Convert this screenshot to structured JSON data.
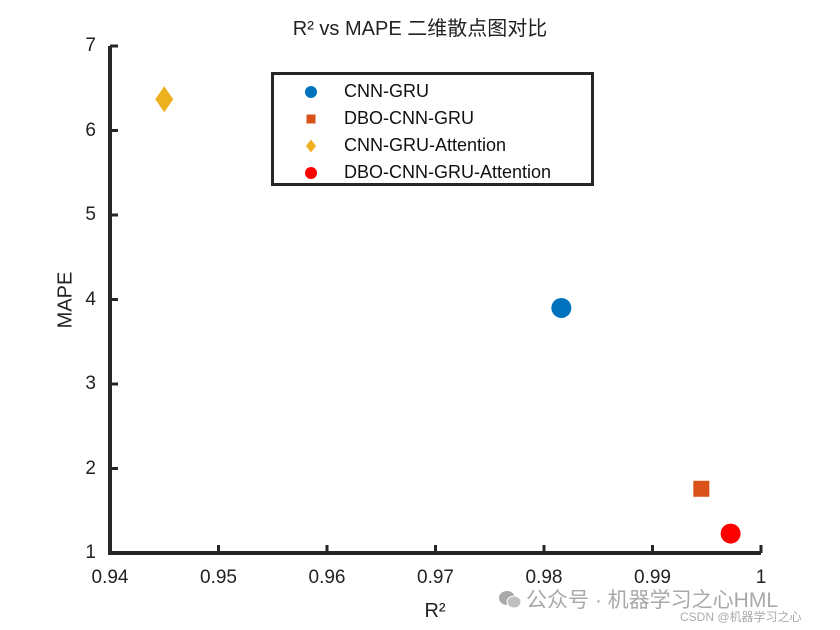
{
  "chart_data": {
    "type": "scatter",
    "title": "R² vs MAPE 二维散点图对比",
    "xlabel": "R²",
    "ylabel": "MAPE",
    "xlim": [
      0.94,
      1.0
    ],
    "ylim": [
      1,
      7
    ],
    "xticks": [
      "0.94",
      "0.95",
      "0.96",
      "0.97",
      "0.98",
      "0.99",
      "1"
    ],
    "yticks": [
      "1",
      "2",
      "3",
      "4",
      "5",
      "6",
      "7"
    ],
    "grid": false,
    "legend_position": "top-center",
    "series": [
      {
        "name": "CNN-GRU",
        "marker": "circle",
        "color": "#0072BD",
        "x": 0.9816,
        "y": 3.9
      },
      {
        "name": "DBO-CNN-GRU",
        "marker": "square",
        "color": "#D95319",
        "x": 0.9945,
        "y": 1.76
      },
      {
        "name": "CNN-GRU-Attention",
        "marker": "diamond",
        "color": "#EDB120",
        "x": 0.945,
        "y": 6.37
      },
      {
        "name": "DBO-CNN-GRU-Attention",
        "marker": "circle",
        "color": "#FF0000",
        "x": 0.9972,
        "y": 1.23
      }
    ]
  },
  "watermark": {
    "main": "公众号 · 机器学习之心HML",
    "sub": "CSDN @机器学习之心"
  }
}
